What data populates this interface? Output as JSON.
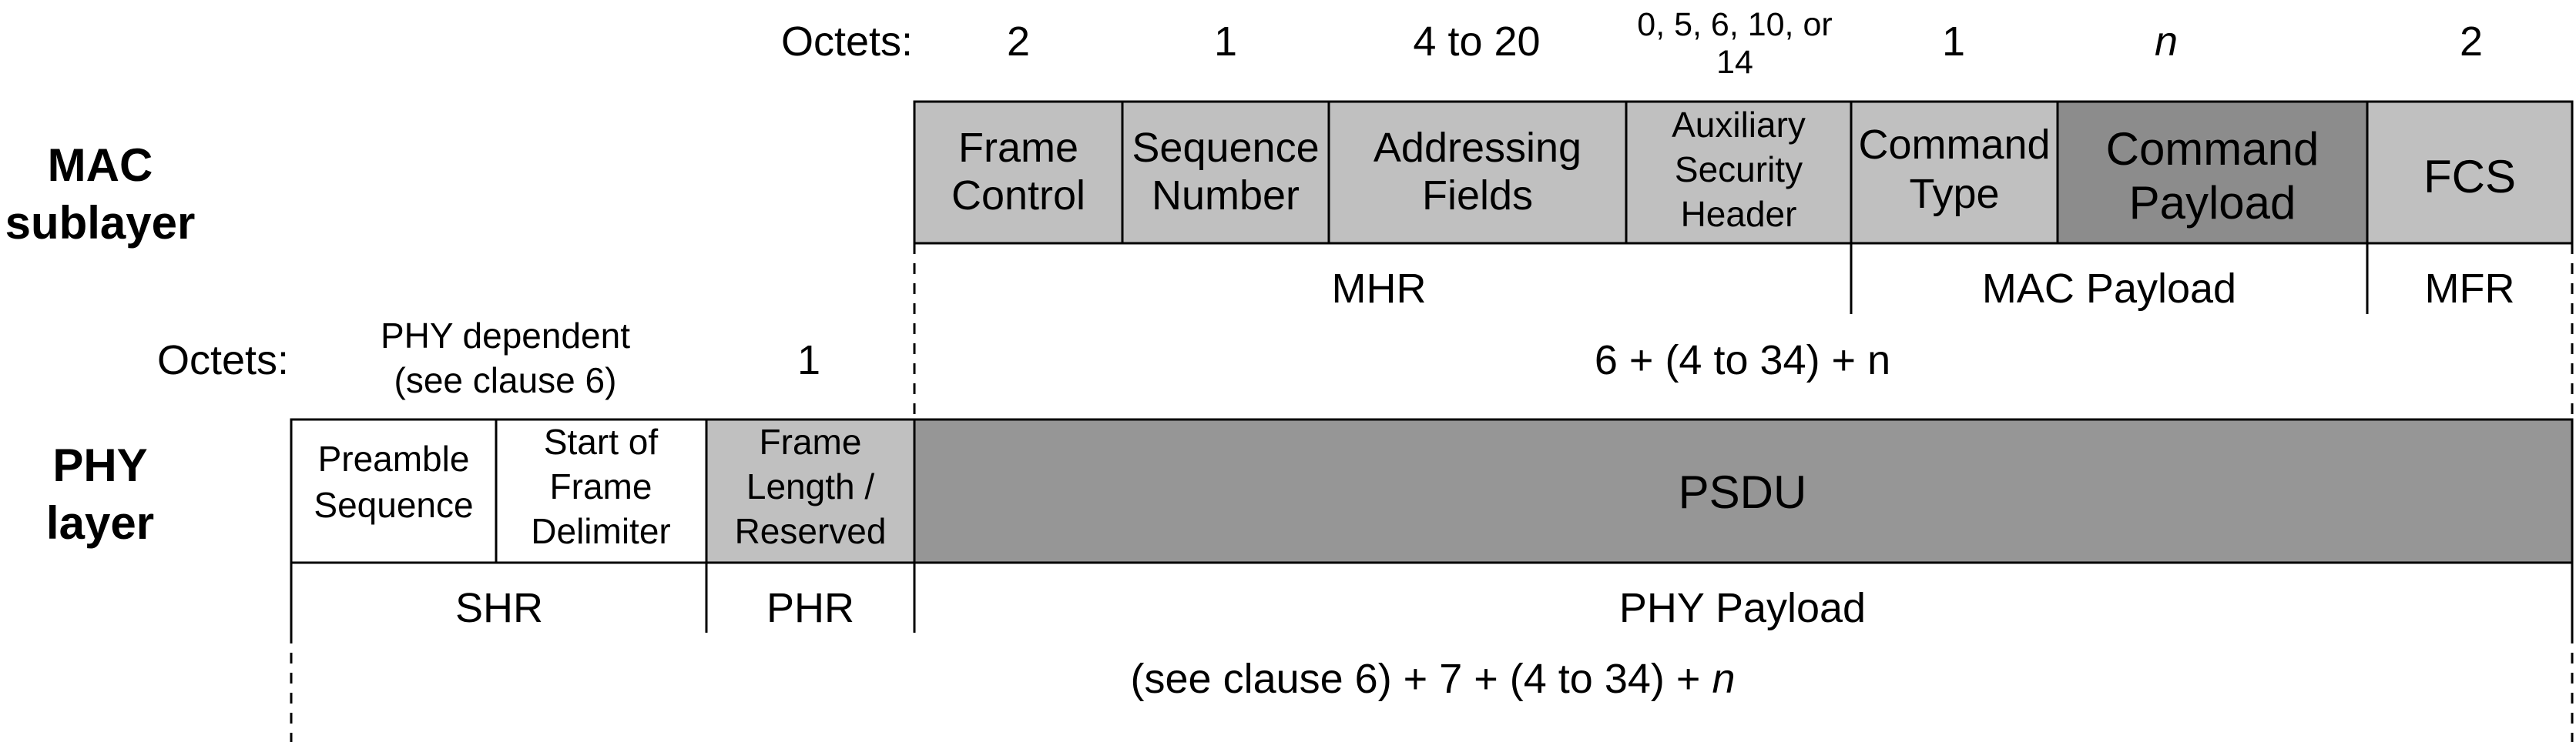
{
  "colors": {
    "light_gray": "#c0c0c0",
    "mid_gray": "#969696",
    "dark_gray": "#8c8c8c",
    "white": "#ffffff"
  },
  "mac": {
    "layer_label_1": "MAC",
    "layer_label_2": "sublayer",
    "octets_label": "Octets:",
    "octets": [
      "2",
      "1",
      "4 to 20",
      "0, 5, 6, 10, or",
      "14",
      "1",
      "n",
      "2"
    ],
    "fields": [
      {
        "line1": "Frame",
        "line2": "Control"
      },
      {
        "line1": "Sequence",
        "line2": "Number"
      },
      {
        "line1": "Addressing",
        "line2": "Fields"
      },
      {
        "line1": "Auxiliary",
        "line2": "Security",
        "line3": "Header"
      },
      {
        "line1": "Command",
        "line2": "Type"
      },
      {
        "line1": "Command",
        "line2": "Payload"
      },
      {
        "line1": "FCS"
      }
    ],
    "groups": {
      "mhr": "MHR",
      "payload": "MAC Payload",
      "mfr": "MFR"
    }
  },
  "phy": {
    "layer_label_1": "PHY",
    "layer_label_2": "layer",
    "octets_label": "Octets:",
    "octets_dep_1": "PHY dependent",
    "octets_dep_2": "(see clause 6)",
    "octets_phr": "1",
    "octets_psdu": "6 + (4 to 34) + n",
    "fields": [
      {
        "line1": "Preamble",
        "line2": "Sequence"
      },
      {
        "line1": "Start of",
        "line2": "Frame",
        "line3": "Delimiter"
      },
      {
        "line1": "Frame",
        "line2": "Length /",
        "line3": "Reserved"
      },
      {
        "line1": "PSDU"
      }
    ],
    "groups": {
      "shr": "SHR",
      "phr": "PHR",
      "payload": "PHY Payload"
    },
    "total_prefix": "(see clause 6) + 7 + (4 to 34) + ",
    "total_n": "n"
  }
}
